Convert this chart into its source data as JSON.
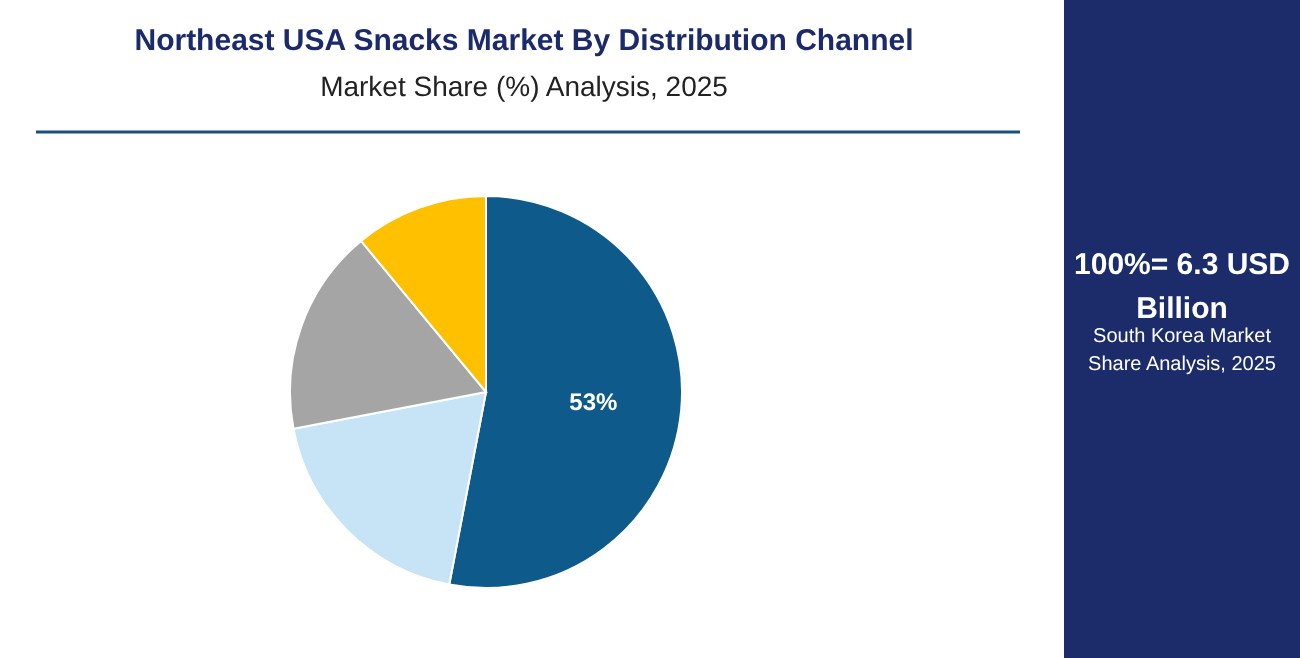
{
  "chart_data": {
    "type": "pie",
    "title": "Northeast USA Snacks Market By Distribution Channel",
    "subtitle": "Market Share (%) Analysis, 2025",
    "categories": [
      null,
      null,
      null,
      null
    ],
    "values": [
      53,
      19,
      17,
      11
    ],
    "colors": [
      "#0e5a8a",
      "#c6e4f6",
      "#a5a5a5",
      "#ffc000"
    ],
    "value_labels": [
      "53%",
      null,
      null,
      null
    ],
    "annotations": [
      "100%= 6.3 USD Billion",
      "South Korea Market Share Analysis, 2025"
    ]
  }
}
